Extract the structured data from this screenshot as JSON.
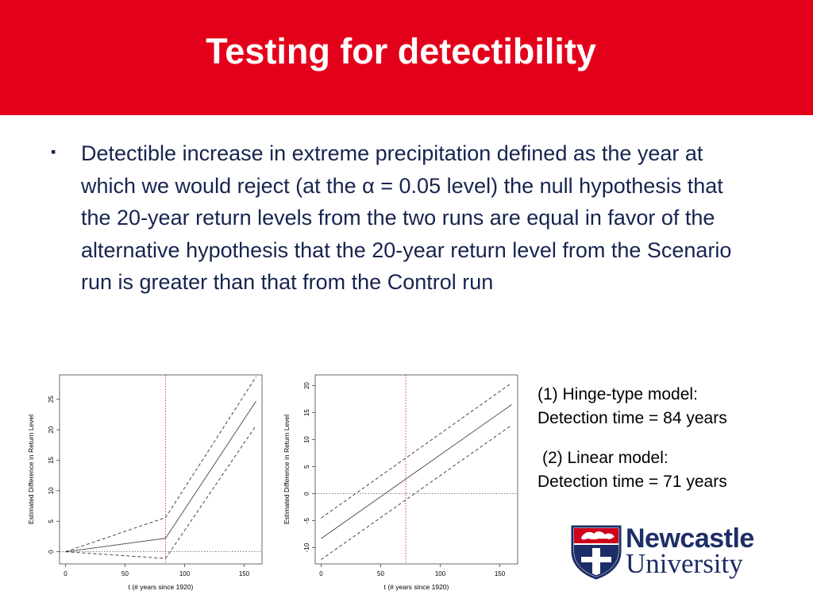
{
  "slide": {
    "title": "Testing for detectibility",
    "bullet_marker": "▪",
    "bullet": "Detectible increase in extreme precipitation defined as the year at which we would reject (at the α = 0.05 level) the null hypothesis that the 20-year return levels from the two runs are equal in favor of the alternative hypothesis that the 20-year return level from the Scenario run is greater than that from the Control run"
  },
  "notes": {
    "hinge_line1": "(1) Hinge-type model:",
    "hinge_line2": "Detection time = 84 years",
    "linear_line1": "(2) Linear model:",
    "linear_line2": "Detection time = 71 years"
  },
  "logo": {
    "line1": "Newcastle",
    "line2": "University"
  },
  "colors": {
    "header": "#e3001b",
    "text": "#17244f",
    "vline": "#e3001b",
    "logo_navy": "#1c2e66",
    "logo_red": "#d0021b"
  },
  "chart_data": [
    {
      "type": "line",
      "title": "",
      "xlabel": "t (# years since 1920)",
      "ylabel": "Estimated Difference in Return Level",
      "xlim": [
        -5,
        165
      ],
      "ylim": [
        -2,
        29
      ],
      "xticks": [
        0,
        50,
        100,
        150
      ],
      "yticks": [
        0,
        5,
        10,
        15,
        20,
        25
      ],
      "hline": 0,
      "vline": 84,
      "series": [
        {
          "style": "solid",
          "x": [
            0,
            84,
            160
          ],
          "y": [
            0,
            2.2,
            24.7
          ]
        },
        {
          "style": "dashed",
          "x": [
            0,
            84,
            160
          ],
          "y": [
            0,
            5.6,
            28.7
          ]
        },
        {
          "style": "dashed",
          "x": [
            0,
            84,
            160
          ],
          "y": [
            0,
            -1.1,
            20.7
          ]
        }
      ]
    },
    {
      "type": "line",
      "title": "",
      "xlabel": "t (# years since 1920)",
      "ylabel": "Estimated Difference in Return Level",
      "xlim": [
        -5,
        165
      ],
      "ylim": [
        -13,
        22
      ],
      "xticks": [
        0,
        50,
        100,
        150
      ],
      "yticks": [
        -10,
        -5,
        0,
        5,
        10,
        15,
        20
      ],
      "hline": 0,
      "vline": 71,
      "series": [
        {
          "style": "solid",
          "x": [
            0,
            160
          ],
          "y": [
            -8.3,
            16.5
          ]
        },
        {
          "style": "dashed",
          "x": [
            0,
            160
          ],
          "y": [
            -4.5,
            20.5
          ]
        },
        {
          "style": "dashed",
          "x": [
            0,
            160
          ],
          "y": [
            -12.2,
            12.7
          ]
        }
      ]
    }
  ]
}
